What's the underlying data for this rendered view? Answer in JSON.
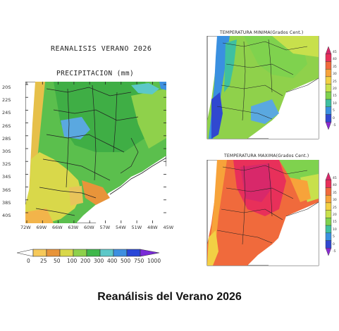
{
  "header": {
    "title": "REANALISIS VERANO 2026",
    "panel_title": "PRECIPITACION (mm)"
  },
  "main_map": {
    "lat_labels": [
      "20S",
      "22S",
      "24S",
      "26S",
      "28S",
      "30S",
      "32S",
      "34S",
      "36S",
      "38S",
      "40S"
    ],
    "lon_labels": [
      "72W",
      "69W",
      "66W",
      "63W",
      "60W",
      "57W",
      "54W",
      "51W",
      "48W",
      "45W"
    ],
    "colorbar": {
      "labels": [
        "0",
        "25",
        "50",
        "100",
        "200",
        "300",
        "400",
        "500",
        "750",
        "1000"
      ],
      "colors": [
        "#ffffff",
        "#f6c95a",
        "#e8943a",
        "#d9d84a",
        "#8ed14b",
        "#3fb84b",
        "#5cc8c8",
        "#3d8fe0",
        "#2746d8",
        "#7a2bd8"
      ]
    }
  },
  "tmin_map": {
    "title": "TEMPERATURA MINIMA(Grados Cent.)"
  },
  "tmax_map": {
    "title": "TEMPERATURA MAXIMA(Grados Cent.)"
  },
  "temp_colorbar": {
    "labels": [
      "45",
      "40",
      "35",
      "30",
      "25",
      "20",
      "15",
      "10",
      "5",
      "0",
      "-5"
    ],
    "colors": [
      "#d8286a",
      "#e8305a",
      "#f06a3c",
      "#f7a33a",
      "#f2d044",
      "#c8e04c",
      "#7fd24e",
      "#3fc0a0",
      "#3a90e0",
      "#3048d0",
      "#8a2bd0"
    ]
  },
  "caption": "Reanálisis del Verano 2026"
}
